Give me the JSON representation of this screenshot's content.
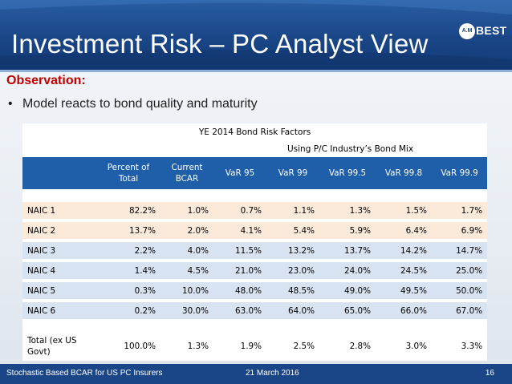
{
  "slide": {
    "title": "Investment Risk – PC Analyst View",
    "logo": {
      "mark": "A.M",
      "text": "BEST"
    },
    "observation": "Observation:",
    "bullet": "Model reacts to bond quality and maturity",
    "bullet_symbol": "•"
  },
  "table": {
    "title": "YE 2014 Bond Risk Factors",
    "subtitle": "Using P/C Industry’s Bond Mix",
    "columns": [
      "",
      "Percent of Total",
      "Current BCAR",
      "VaR 95",
      "VaR 99",
      "VaR 99.5",
      "VaR 99.8",
      "VaR 99.9"
    ],
    "rows": [
      {
        "label": "NAIC 1",
        "values": [
          "82.2%",
          "1.0%",
          "0.7%",
          "1.1%",
          "1.3%",
          "1.5%",
          "1.7%"
        ]
      },
      {
        "label": "NAIC 2",
        "values": [
          "13.7%",
          "2.0%",
          "4.1%",
          "5.4%",
          "5.9%",
          "6.4%",
          "6.9%"
        ]
      },
      {
        "label": "NAIC 3",
        "values": [
          "2.2%",
          "4.0%",
          "11.5%",
          "13.2%",
          "13.7%",
          "14.2%",
          "14.7%"
        ]
      },
      {
        "label": "NAIC 4",
        "values": [
          "1.4%",
          "4.5%",
          "21.0%",
          "23.0%",
          "24.0%",
          "24.5%",
          "25.0%"
        ]
      },
      {
        "label": "NAIC 5",
        "values": [
          "0.3%",
          "10.0%",
          "48.0%",
          "48.5%",
          "49.0%",
          "49.5%",
          "50.0%"
        ]
      },
      {
        "label": "NAIC 6",
        "values": [
          "0.2%",
          "30.0%",
          "63.0%",
          "64.0%",
          "65.0%",
          "66.0%",
          "67.0%"
        ]
      }
    ],
    "total": {
      "label": "Total (ex US Govt)",
      "values": [
        "100.0%",
        "1.3%",
        "1.9%",
        "2.5%",
        "2.8%",
        "3.0%",
        "3.3%"
      ]
    }
  },
  "footer": {
    "left": "Stochastic Based BCAR for US PC Insurers",
    "date": "21 March 2016",
    "page": "16"
  },
  "colors": {
    "header": "#1a4687",
    "table_header": "#1f5ea8",
    "observation": "#c00000",
    "row_orange": "#fbe9d9",
    "row_blue": "#d8e3f2"
  }
}
